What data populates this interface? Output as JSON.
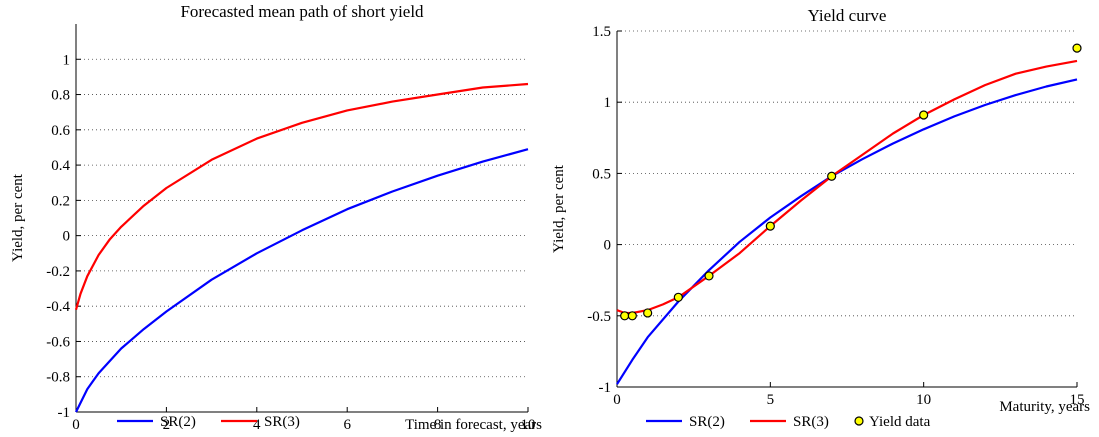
{
  "chart_data": [
    {
      "type": "line",
      "title": "Forecasted mean path of short yield",
      "xlabel": "Time in forecast, years",
      "ylabel": "Yield, per cent",
      "xlim": [
        0,
        10
      ],
      "ylim": [
        -1,
        1.2
      ],
      "xticks": [
        "0",
        "2",
        "4",
        "6",
        "8",
        "10"
      ],
      "yticks": [
        "-1",
        "-0.8",
        "-0.6",
        "-0.4",
        "-0.2",
        "0",
        "0.2",
        "0.4",
        "0.6",
        "0.8",
        "1"
      ],
      "grid": "horizontal dotted",
      "legend": "bottom",
      "series": [
        {
          "name": "SR(2)",
          "color": "#0000ff",
          "x": [
            0,
            0.25,
            0.5,
            1,
            1.5,
            2,
            3,
            4,
            5,
            6,
            7,
            8,
            9,
            10
          ],
          "y": [
            -1.0,
            -0.87,
            -0.78,
            -0.64,
            -0.53,
            -0.43,
            -0.25,
            -0.1,
            0.03,
            0.15,
            0.25,
            0.34,
            0.42,
            0.49
          ]
        },
        {
          "name": "SR(3)",
          "color": "#ff0000",
          "x": [
            0,
            0.1,
            0.25,
            0.5,
            0.75,
            1,
            1.5,
            2,
            3,
            4,
            5,
            6,
            7,
            8,
            9,
            10
          ],
          "y": [
            -0.42,
            -0.33,
            -0.23,
            -0.11,
            -0.02,
            0.05,
            0.17,
            0.27,
            0.43,
            0.55,
            0.64,
            0.71,
            0.76,
            0.8,
            0.84,
            0.86
          ]
        }
      ]
    },
    {
      "type": "line",
      "title": "Yield curve",
      "xlabel": "Maturity, years",
      "ylabel": "Yield, per cent",
      "xlim": [
        0,
        15
      ],
      "ylim": [
        -1,
        1.5
      ],
      "xticks": [
        "0",
        "5",
        "10",
        "15"
      ],
      "yticks": [
        "-1",
        "-0.5",
        "0",
        "0.5",
        "1",
        "1.5"
      ],
      "grid": "horizontal dotted",
      "legend": "bottom",
      "series": [
        {
          "name": "SR(2)",
          "color": "#0000ff",
          "x": [
            0,
            0.5,
            1,
            2,
            3,
            4,
            5,
            6,
            7,
            8,
            9,
            10,
            11,
            12,
            13,
            14,
            15
          ],
          "y": [
            -0.98,
            -0.81,
            -0.65,
            -0.4,
            -0.18,
            0.02,
            0.19,
            0.34,
            0.48,
            0.6,
            0.71,
            0.81,
            0.9,
            0.98,
            1.05,
            1.11,
            1.16
          ]
        },
        {
          "name": "SR(3)",
          "color": "#ff0000",
          "x": [
            0,
            0.25,
            0.5,
            1,
            1.5,
            2,
            3,
            4,
            5,
            6,
            7,
            8,
            9,
            10,
            11,
            12,
            13,
            14,
            15
          ],
          "y": [
            -0.46,
            -0.48,
            -0.48,
            -0.46,
            -0.42,
            -0.37,
            -0.22,
            -0.06,
            0.13,
            0.31,
            0.48,
            0.63,
            0.78,
            0.91,
            1.02,
            1.12,
            1.2,
            1.25,
            1.29
          ]
        },
        {
          "name": "Yield data",
          "color": "#ffff00",
          "marker": "circle",
          "x": [
            0.25,
            0.5,
            1,
            2,
            3,
            5,
            7,
            10,
            15
          ],
          "y": [
            -0.5,
            -0.5,
            -0.48,
            -0.37,
            -0.22,
            0.13,
            0.48,
            0.91,
            1.38
          ]
        }
      ]
    }
  ]
}
